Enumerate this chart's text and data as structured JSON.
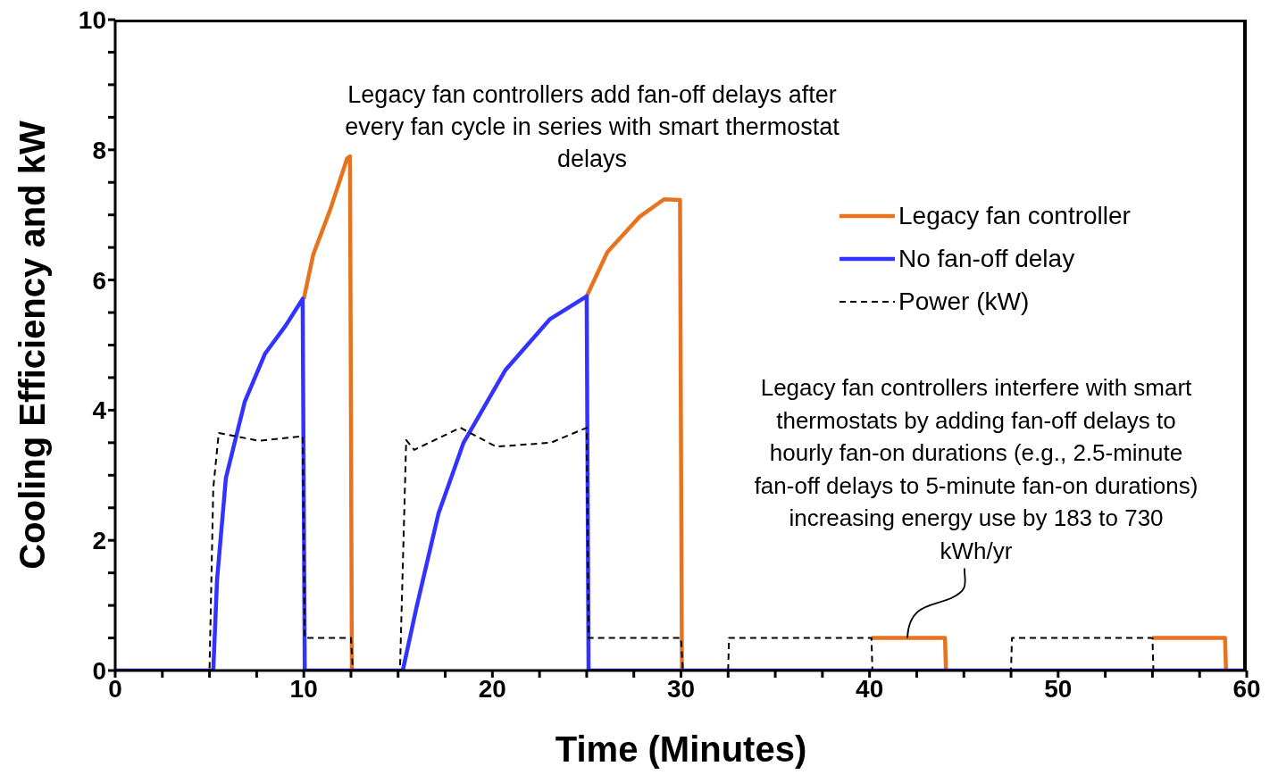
{
  "chart_data": {
    "type": "line",
    "xlabel": "Time (Minutes)",
    "ylabel": "Cooling Efficiency and kW",
    "xlim": [
      0,
      60
    ],
    "ylim": [
      0,
      10
    ],
    "xticks": [
      0,
      {
        "value": 2.5,
        "label": null
      },
      {
        "value": 5,
        "label": null
      },
      {
        "value": 7.5,
        "label": null
      },
      10,
      {
        "value": 12.5,
        "label": null
      },
      {
        "value": 15,
        "label": null
      },
      {
        "value": 17.5,
        "label": null
      },
      20,
      {
        "value": 22.5,
        "label": null
      },
      {
        "value": 25,
        "label": null
      },
      {
        "value": 27.5,
        "label": null
      },
      30,
      {
        "value": 32.5,
        "label": null
      },
      {
        "value": 35,
        "label": null
      },
      {
        "value": 37.5,
        "label": null
      },
      40,
      {
        "value": 42.5,
        "label": null
      },
      {
        "value": 45,
        "label": null
      },
      {
        "value": 47.5,
        "label": null
      },
      50,
      {
        "value": 52.5,
        "label": null
      },
      {
        "value": 55,
        "label": null
      },
      {
        "value": 57.5,
        "label": null
      },
      60
    ],
    "yticks": [
      0,
      {
        "value": 0.5,
        "label": null
      },
      {
        "value": 1,
        "label": null
      },
      {
        "value": 1.5,
        "label": null
      },
      2,
      {
        "value": 2.5,
        "label": null
      },
      {
        "value": 3,
        "label": null
      },
      {
        "value": 3.5,
        "label": null
      },
      4,
      {
        "value": 4.5,
        "label": null
      },
      {
        "value": 5,
        "label": null
      },
      {
        "value": 5.5,
        "label": null
      },
      6,
      {
        "value": 6.5,
        "label": null
      },
      {
        "value": 7,
        "label": null
      },
      {
        "value": 7.5,
        "label": null
      },
      8,
      {
        "value": 8.5,
        "label": null
      },
      {
        "value": 9,
        "label": null
      },
      {
        "value": 9.5,
        "label": null
      },
      10
    ],
    "grid": false,
    "legend": "top right",
    "marker": "none",
    "series": [
      {
        "name": "Legacy fan controller",
        "color": "#e8731e",
        "line_style": "solid",
        "x": [
          10,
          10.5,
          11.4,
          12.3,
          12.45,
          12.55,
          12.6,
          25.0,
          26.1,
          27.8,
          29.1,
          29.95,
          30.05,
          30.1,
          40.1,
          44.0,
          44.05,
          44.1,
          55.0,
          58.85,
          58.9
        ],
        "values": [
          5.71,
          6.39,
          7.08,
          7.87,
          7.9,
          0,
          null,
          5.75,
          6.43,
          6.97,
          7.24,
          7.23,
          0,
          null,
          0.5,
          0.5,
          0,
          null,
          0.5,
          0.5,
          0
        ]
      },
      {
        "name": "No fan-off delay",
        "color": "#3333ff",
        "line_style": "solid",
        "x": [
          0,
          5.2,
          5.4,
          5.87,
          6.87,
          7.95,
          9.04,
          9.94,
          10.05,
          15.25,
          15.96,
          17.14,
          18.47,
          20.7,
          23.06,
          25.0,
          25.1,
          60
        ],
        "values": [
          0,
          0,
          1.39,
          2.96,
          4.13,
          4.87,
          5.3,
          5.71,
          0,
          0,
          0.95,
          2.41,
          3.5,
          4.62,
          5.4,
          5.75,
          0,
          0
        ]
      },
      {
        "name": "Power (kW)",
        "color": "#000000",
        "line_style": "dashed",
        "x": [
          0,
          5.0,
          5.2,
          5.49,
          7.6,
          9.94,
          10.05,
          12.5,
          12.6,
          15.1,
          15.43,
          15.86,
          18.3,
          20.2,
          23.1,
          25.0,
          25.1,
          30.0,
          30.1,
          32.5,
          32.55,
          40.1,
          40.15,
          47.5,
          47.55,
          55.0,
          55.05,
          60
        ],
        "values": [
          0,
          0,
          2.8,
          3.65,
          3.53,
          3.6,
          0.5,
          0.5,
          0,
          0,
          3.54,
          3.39,
          3.73,
          3.44,
          3.5,
          3.73,
          0.5,
          0.5,
          0,
          0,
          0.5,
          0.5,
          0,
          0,
          0.5,
          0.5,
          0,
          0
        ]
      }
    ],
    "annotations": [
      "Legacy fan controllers add fan-off delays after every fan cycle in series with smart thermostat delays",
      {
        "text": "Legacy fan controllers interfere with smart thermostats by adding fan-off delays to hourly fan-on durations (e.g., 2.5-minute fan-off delays to 5-minute fan-on durations) increasing energy use by 183 to 730 kWh/yr",
        "x": 42,
        "y": 0.5
      }
    ]
  }
}
